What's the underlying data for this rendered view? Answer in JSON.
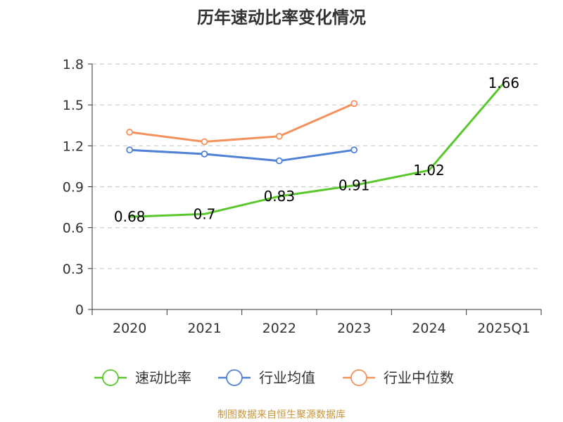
{
  "chart_data": {
    "type": "line",
    "title": "历年速动比率变化情况",
    "categories": [
      "2020",
      "2021",
      "2022",
      "2023",
      "2024",
      "2025Q1"
    ],
    "y_ticks": [
      "0",
      "0.3",
      "0.6",
      "0.9",
      "1.2",
      "1.5",
      "1.8"
    ],
    "ylim": [
      0,
      1.8
    ],
    "grid": "horizontal dashed",
    "legend_position": "bottom",
    "series": [
      {
        "name": "速动比率",
        "color": "#5ac82d",
        "values": [
          0.68,
          0.7,
          0.83,
          0.91,
          1.02,
          1.66
        ],
        "labels": [
          "0.68",
          "0.7",
          "0.83",
          "0.91",
          "1.02",
          "1.66"
        ],
        "show_markers": false
      },
      {
        "name": "行业均值",
        "color": "#4f81d6",
        "values": [
          1.17,
          1.14,
          1.09,
          1.17,
          null,
          null
        ],
        "show_markers": true
      },
      {
        "name": "行业中位数",
        "color": "#f5915a",
        "values": [
          1.3,
          1.23,
          1.27,
          1.51,
          null,
          null
        ],
        "show_markers": true
      }
    ]
  },
  "footer": {
    "source": "制图数据来自恒生聚源数据库"
  }
}
